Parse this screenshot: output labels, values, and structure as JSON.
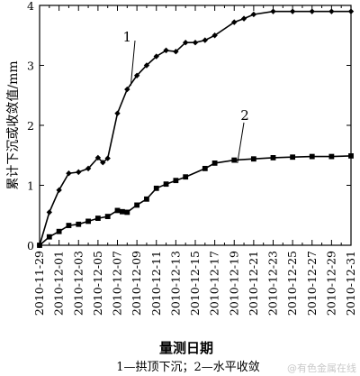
{
  "chart_data": {
    "type": "line",
    "ylabel": "累计下沉或收敛值/mm",
    "xlabel": "量测日期",
    "ylim": [
      0,
      4
    ],
    "yticks": [
      "0",
      "1",
      "2",
      "3",
      "4"
    ],
    "xlim": [
      "2010-11-29",
      "2010-12-31"
    ],
    "xticks": [
      "2010-11-29",
      "2010-12-01",
      "2010-12-03",
      "2010-12-05",
      "2010-12-07",
      "2010-12-09",
      "2010-12-11",
      "2010-12-13",
      "2010-12-15",
      "2010-12-17",
      "2010-12-19",
      "2010-12-21",
      "2010-12-23",
      "2010-12-25",
      "2010-12-27",
      "2010-12-29",
      "2010-12-31"
    ],
    "caption": "1—拱顶下沉；2—水平收敛",
    "grid": false,
    "series": [
      {
        "name": "1",
        "marker": "diamond",
        "x": [
          "2010-11-29",
          "2010-11-30",
          "2010-12-01",
          "2010-12-02",
          "2010-12-03",
          "2010-12-04",
          "2010-12-05",
          "2010-12-05T12:00",
          "2010-12-06",
          "2010-12-07",
          "2010-12-08",
          "2010-12-09",
          "2010-12-10",
          "2010-12-11",
          "2010-12-12",
          "2010-12-13",
          "2010-12-14",
          "2010-12-15",
          "2010-12-16",
          "2010-12-17",
          "2010-12-19",
          "2010-12-20",
          "2010-12-21",
          "2010-12-23",
          "2010-12-25",
          "2010-12-27",
          "2010-12-29",
          "2010-12-31"
        ],
        "values": [
          0,
          0.55,
          0.92,
          1.2,
          1.22,
          1.28,
          1.46,
          1.38,
          1.45,
          2.2,
          2.6,
          2.83,
          3.0,
          3.15,
          3.25,
          3.23,
          3.38,
          3.38,
          3.42,
          3.5,
          3.72,
          3.78,
          3.85,
          3.9,
          3.9,
          3.9,
          3.9,
          3.9
        ]
      },
      {
        "name": "2",
        "marker": "square",
        "x": [
          "2010-11-29",
          "2010-11-30",
          "2010-12-01",
          "2010-12-02",
          "2010-12-03",
          "2010-12-04",
          "2010-12-05",
          "2010-12-06",
          "2010-12-07",
          "2010-12-07T12:00",
          "2010-12-08",
          "2010-12-09",
          "2010-12-10",
          "2010-12-11",
          "2010-12-12",
          "2010-12-13",
          "2010-12-14",
          "2010-12-16",
          "2010-12-17",
          "2010-12-19",
          "2010-12-21",
          "2010-12-23",
          "2010-12-25",
          "2010-12-27",
          "2010-12-29",
          "2010-12-31"
        ],
        "values": [
          0,
          0.14,
          0.23,
          0.33,
          0.35,
          0.4,
          0.45,
          0.48,
          0.58,
          0.56,
          0.55,
          0.67,
          0.77,
          0.95,
          1.02,
          1.08,
          1.14,
          1.28,
          1.37,
          1.42,
          1.44,
          1.46,
          1.47,
          1.48,
          1.48,
          1.49
        ]
      }
    ]
  },
  "watermark": "@有色金属在线"
}
